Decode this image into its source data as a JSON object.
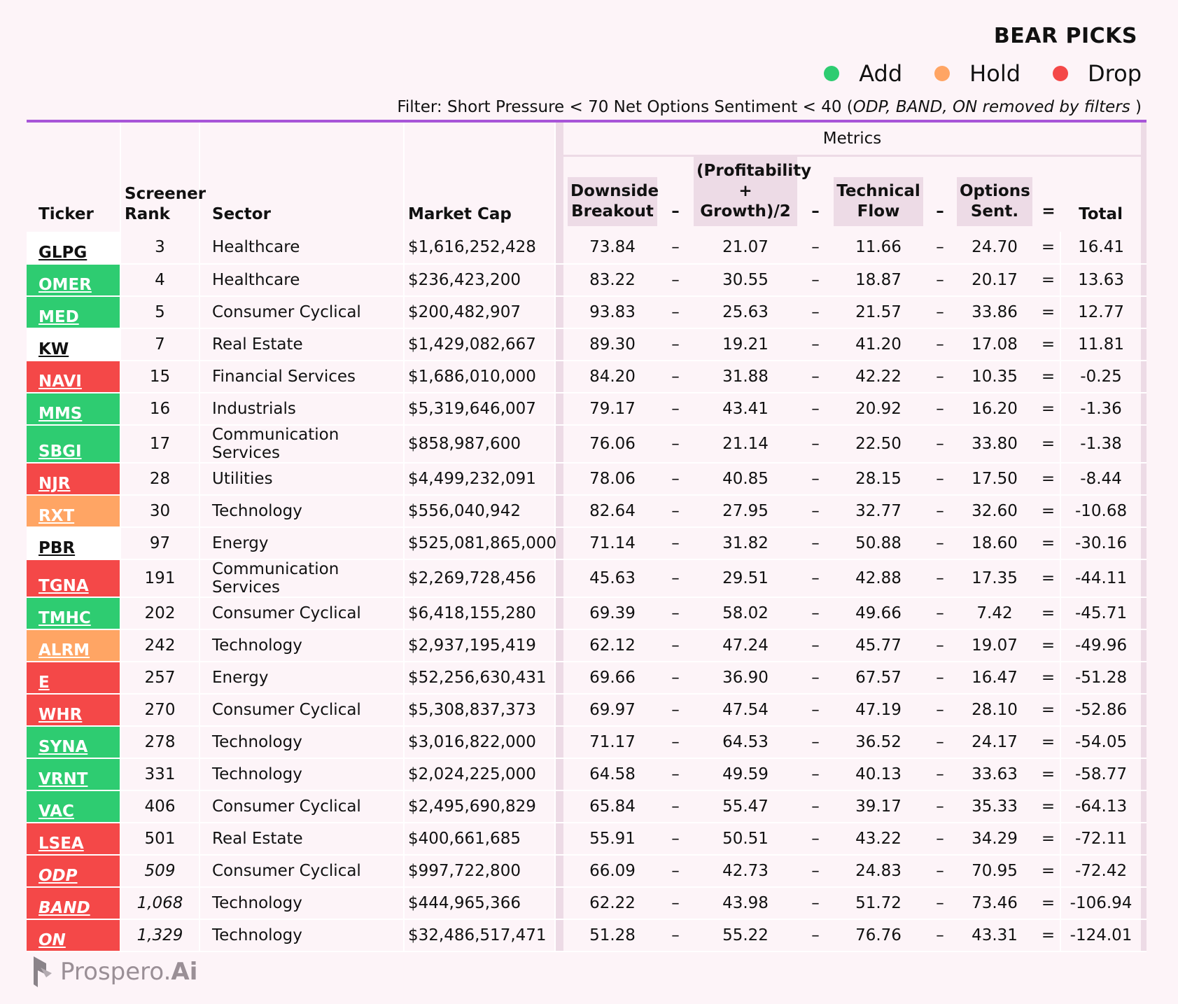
{
  "header": {
    "title": "BEAR PICKS",
    "legend": [
      {
        "label": "Add",
        "color": "#2ecc71"
      },
      {
        "label": "Hold",
        "color": "#ffa564"
      },
      {
        "label": "Drop",
        "color": "#f44848"
      }
    ],
    "filter_prefix": "Filter: Short Pressure < 70  Net Options Sentiment < 40  (",
    "filter_note": "ODP, BAND, ON removed by filters",
    "filter_suffix": " )"
  },
  "table": {
    "metrics_label": "Metrics",
    "columns": {
      "ticker": "Ticker",
      "rank": "Screener Rank",
      "sector": "Sector",
      "market_cap": "Market Cap",
      "downside": "Downside Breakout",
      "profit": "(Profitability + Growth)/2",
      "technical": "Technical Flow",
      "options": "Options Sent.",
      "total": "Total",
      "minus": "–",
      "equals": "="
    },
    "status_colors": {
      "add": "#2ecc71",
      "hold": "#ffa564",
      "drop": "#f44848",
      "none": "#ffffff"
    }
  },
  "chart_data": {
    "type": "table",
    "title": "BEAR PICKS",
    "rows": [
      {
        "ticker": "GLPG",
        "status": "none",
        "rank": "3",
        "sector": "Healthcare",
        "market_cap": "$1,616,252,428",
        "downside": "73.84",
        "profit": "21.07",
        "technical": "11.66",
        "options": "24.70",
        "total": "16.41",
        "removed": false
      },
      {
        "ticker": "OMER",
        "status": "add",
        "rank": "4",
        "sector": "Healthcare",
        "market_cap": "$236,423,200",
        "downside": "83.22",
        "profit": "30.55",
        "technical": "18.87",
        "options": "20.17",
        "total": "13.63",
        "removed": false
      },
      {
        "ticker": "MED",
        "status": "add",
        "rank": "5",
        "sector": "Consumer Cyclical",
        "market_cap": "$200,482,907",
        "downside": "93.83",
        "profit": "25.63",
        "technical": "21.57",
        "options": "33.86",
        "total": "12.77",
        "removed": false
      },
      {
        "ticker": "KW",
        "status": "none",
        "rank": "7",
        "sector": "Real Estate",
        "market_cap": "$1,429,082,667",
        "downside": "89.30",
        "profit": "19.21",
        "technical": "41.20",
        "options": "17.08",
        "total": "11.81",
        "removed": false
      },
      {
        "ticker": "NAVI",
        "status": "drop",
        "rank": "15",
        "sector": "Financial Services",
        "market_cap": "$1,686,010,000",
        "downside": "84.20",
        "profit": "31.88",
        "technical": "42.22",
        "options": "10.35",
        "total": "-0.25",
        "removed": false
      },
      {
        "ticker": "MMS",
        "status": "add",
        "rank": "16",
        "sector": "Industrials",
        "market_cap": "$5,319,646,007",
        "downside": "79.17",
        "profit": "43.41",
        "technical": "20.92",
        "options": "16.20",
        "total": "-1.36",
        "removed": false
      },
      {
        "ticker": "SBGI",
        "status": "add",
        "rank": "17",
        "sector": "Communication Services",
        "market_cap": "$858,987,600",
        "downside": "76.06",
        "profit": "21.14",
        "technical": "22.50",
        "options": "33.80",
        "total": "-1.38",
        "removed": false
      },
      {
        "ticker": "NJR",
        "status": "drop",
        "rank": "28",
        "sector": "Utilities",
        "market_cap": "$4,499,232,091",
        "downside": "78.06",
        "profit": "40.85",
        "technical": "28.15",
        "options": "17.50",
        "total": "-8.44",
        "removed": false
      },
      {
        "ticker": "RXT",
        "status": "hold",
        "rank": "30",
        "sector": "Technology",
        "market_cap": "$556,040,942",
        "downside": "82.64",
        "profit": "27.95",
        "technical": "32.77",
        "options": "32.60",
        "total": "-10.68",
        "removed": false
      },
      {
        "ticker": "PBR",
        "status": "none",
        "rank": "97",
        "sector": "Energy",
        "market_cap": "$525,081,865,000",
        "downside": "71.14",
        "profit": "31.82",
        "technical": "50.88",
        "options": "18.60",
        "total": "-30.16",
        "removed": false
      },
      {
        "ticker": "TGNA",
        "status": "drop",
        "rank": "191",
        "sector": "Communication Services",
        "market_cap": "$2,269,728,456",
        "downside": "45.63",
        "profit": "29.51",
        "technical": "42.88",
        "options": "17.35",
        "total": "-44.11",
        "removed": false
      },
      {
        "ticker": "TMHC",
        "status": "add",
        "rank": "202",
        "sector": "Consumer Cyclical",
        "market_cap": "$6,418,155,280",
        "downside": "69.39",
        "profit": "58.02",
        "technical": "49.66",
        "options": "7.42",
        "total": "-45.71",
        "removed": false
      },
      {
        "ticker": "ALRM",
        "status": "hold",
        "rank": "242",
        "sector": "Technology",
        "market_cap": "$2,937,195,419",
        "downside": "62.12",
        "profit": "47.24",
        "technical": "45.77",
        "options": "19.07",
        "total": "-49.96",
        "removed": false
      },
      {
        "ticker": "E",
        "status": "drop",
        "rank": "257",
        "sector": "Energy",
        "market_cap": "$52,256,630,431",
        "downside": "69.66",
        "profit": "36.90",
        "technical": "67.57",
        "options": "16.47",
        "total": "-51.28",
        "removed": false
      },
      {
        "ticker": "WHR",
        "status": "drop",
        "rank": "270",
        "sector": "Consumer Cyclical",
        "market_cap": "$5,308,837,373",
        "downside": "69.97",
        "profit": "47.54",
        "technical": "47.19",
        "options": "28.10",
        "total": "-52.86",
        "removed": false
      },
      {
        "ticker": "SYNA",
        "status": "add",
        "rank": "278",
        "sector": "Technology",
        "market_cap": "$3,016,822,000",
        "downside": "71.17",
        "profit": "64.53",
        "technical": "36.52",
        "options": "24.17",
        "total": "-54.05",
        "removed": false
      },
      {
        "ticker": "VRNT",
        "status": "add",
        "rank": "331",
        "sector": "Technology",
        "market_cap": "$2,024,225,000",
        "downside": "64.58",
        "profit": "49.59",
        "technical": "40.13",
        "options": "33.63",
        "total": "-58.77",
        "removed": false
      },
      {
        "ticker": "VAC",
        "status": "add",
        "rank": "406",
        "sector": "Consumer Cyclical",
        "market_cap": "$2,495,690,829",
        "downside": "65.84",
        "profit": "55.47",
        "technical": "39.17",
        "options": "35.33",
        "total": "-64.13",
        "removed": false
      },
      {
        "ticker": "LSEA",
        "status": "drop",
        "rank": "501",
        "sector": "Real Estate",
        "market_cap": "$400,661,685",
        "downside": "55.91",
        "profit": "50.51",
        "technical": "43.22",
        "options": "34.29",
        "total": "-72.11",
        "removed": false
      },
      {
        "ticker": "ODP",
        "status": "drop",
        "rank": "509",
        "sector": "Consumer Cyclical",
        "market_cap": "$997,722,800",
        "downside": "66.09",
        "profit": "42.73",
        "technical": "24.83",
        "options": "70.95",
        "total": "-72.42",
        "removed": true
      },
      {
        "ticker": "BAND",
        "status": "drop",
        "rank": "1,068",
        "sector": "Technology",
        "market_cap": "$444,965,366",
        "downside": "62.22",
        "profit": "43.98",
        "technical": "51.72",
        "options": "73.46",
        "total": "-106.94",
        "removed": true
      },
      {
        "ticker": "ON",
        "status": "drop",
        "rank": "1,329",
        "sector": "Technology",
        "market_cap": "$32,486,517,471",
        "downside": "51.28",
        "profit": "55.22",
        "technical": "76.76",
        "options": "43.31",
        "total": "-124.01",
        "removed": true
      }
    ]
  },
  "footer": {
    "logo_text": "Prospero.",
    "logo_suffix": "Ai",
    "logo_icon": "prospero-logo-icon"
  }
}
